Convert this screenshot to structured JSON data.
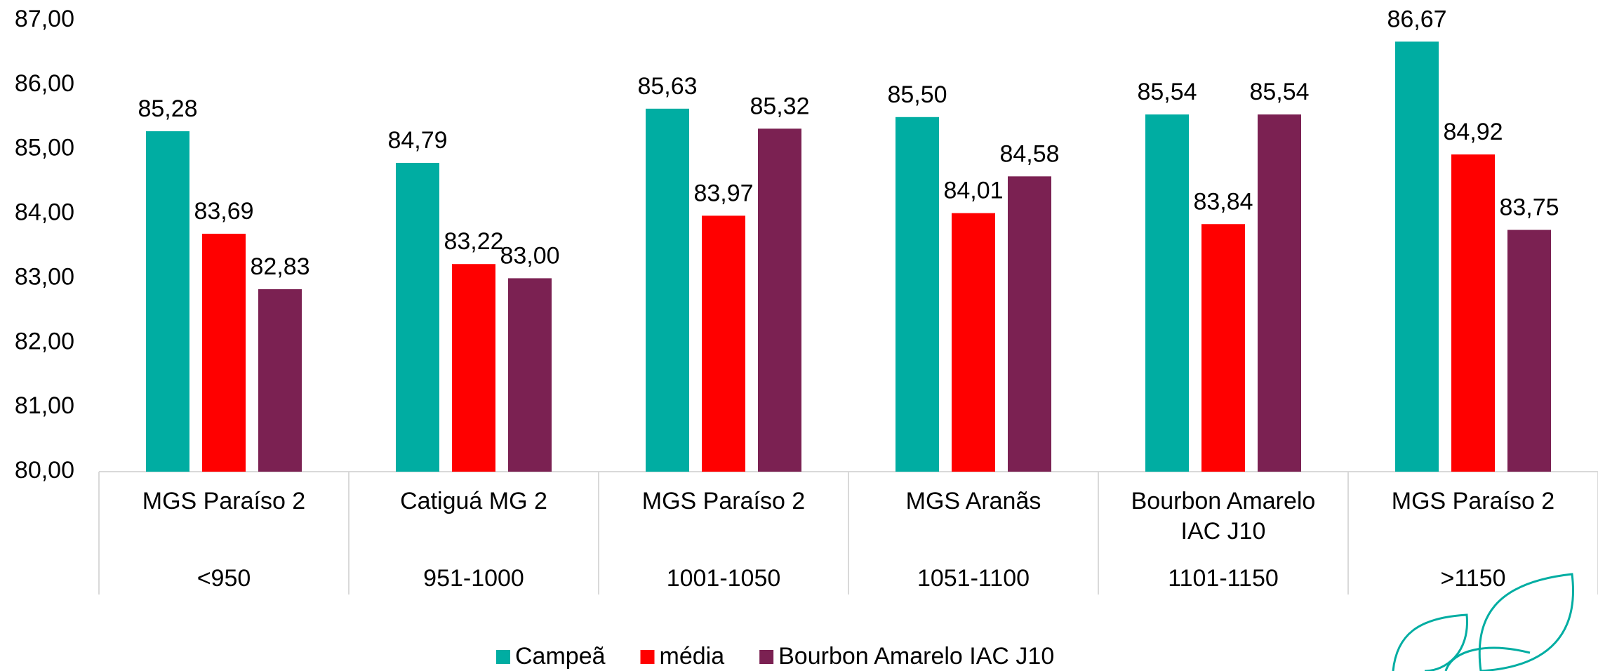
{
  "chart_data": {
    "type": "bar",
    "categories": [
      "MGS Paraíso 2",
      "Catiguá MG 2",
      "MGS Paraíso 2",
      "MGS Aranãs",
      "Bourbon Amarelo IAC J10",
      "MGS Paraíso 2"
    ],
    "category_groups": [
      "<950",
      "951-1000",
      "1001-1050",
      "1051-1100",
      "1101-1150",
      ">1150"
    ],
    "series": [
      {
        "name": "Campeã",
        "color": "#00ada2",
        "values": [
          85.28,
          84.79,
          85.63,
          85.5,
          85.54,
          86.67
        ],
        "value_labels": [
          "85,28",
          "84,79",
          "85,63",
          "85,50",
          "85,54",
          "86,67"
        ]
      },
      {
        "name": "média",
        "color": "#ff0000",
        "values": [
          83.69,
          83.22,
          83.97,
          84.01,
          83.84,
          84.92
        ],
        "value_labels": [
          "83,69",
          "83,22",
          "83,97",
          "84,01",
          "83,84",
          "84,92"
        ]
      },
      {
        "name": "Bourbon Amarelo IAC J10",
        "color": "#7b2152",
        "values": [
          82.83,
          83.0,
          85.32,
          84.58,
          85.54,
          83.75
        ],
        "value_labels": [
          "82,83",
          "83,00",
          "85,32",
          "84,58",
          "85,54",
          "83,75"
        ]
      }
    ],
    "ylim": [
      80,
      87
    ],
    "yticks": [
      {
        "value": 80,
        "label": "80,00"
      },
      {
        "value": 81,
        "label": "81,00"
      },
      {
        "value": 82,
        "label": "82,00"
      },
      {
        "value": 83,
        "label": "83,00"
      },
      {
        "value": 84,
        "label": "84,00"
      },
      {
        "value": 85,
        "label": "85,00"
      },
      {
        "value": 86,
        "label": "86,00"
      },
      {
        "value": 87,
        "label": "87,00"
      }
    ],
    "grid": false
  }
}
